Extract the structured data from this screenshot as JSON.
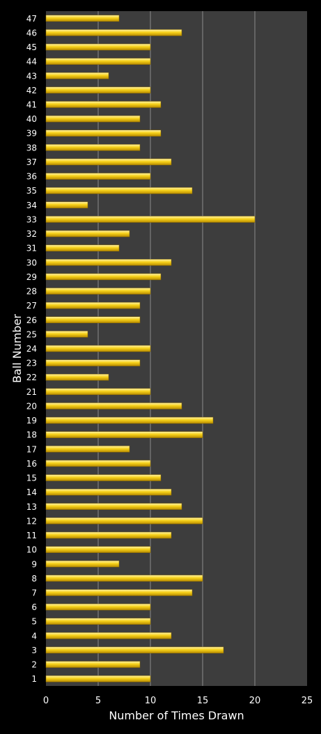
{
  "chart_data": {
    "type": "bar",
    "orientation": "horizontal",
    "title": "",
    "xlabel": "Number of Times Drawn",
    "ylabel": "Ball Number",
    "xlim": [
      0,
      25
    ],
    "xticks": [
      "0",
      "5",
      "10",
      "15",
      "20",
      "25"
    ],
    "grid": true,
    "categories": [
      "1",
      "2",
      "3",
      "4",
      "5",
      "6",
      "7",
      "8",
      "9",
      "10",
      "11",
      "12",
      "13",
      "14",
      "15",
      "16",
      "17",
      "18",
      "19",
      "20",
      "21",
      "22",
      "23",
      "24",
      "25",
      "26",
      "27",
      "28",
      "29",
      "30",
      "31",
      "32",
      "33",
      "34",
      "35",
      "36",
      "37",
      "38",
      "39",
      "40",
      "41",
      "42",
      "43",
      "44",
      "45",
      "46",
      "47"
    ],
    "values": [
      10,
      9,
      17,
      12,
      10,
      10,
      14,
      15,
      7,
      10,
      12,
      15,
      13,
      12,
      11,
      10,
      8,
      15,
      16,
      13,
      10,
      6,
      9,
      10,
      4,
      9,
      9,
      10,
      11,
      12,
      7,
      8,
      20,
      4,
      14,
      10,
      12,
      9,
      11,
      9,
      11,
      10,
      6,
      10,
      10,
      13,
      7
    ]
  },
  "colors": {
    "page_background": "#000000",
    "plot_background": "#3d3d3d",
    "gridline": "#8a8a8a",
    "bar_fill": "#f7d21a",
    "bar_highlight": "#fff3a8",
    "bar_shadow": "#b88a00",
    "text": "#ffffff"
  }
}
